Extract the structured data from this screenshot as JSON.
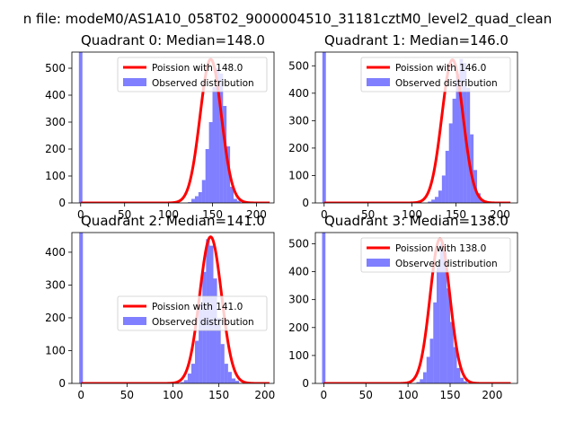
{
  "suptitle": "n file: modeM0/AS1A10_058T02_9000004510_31181cztM0_level2_quad_clean",
  "colors": {
    "hist": "#0000ff",
    "fit": "#ff0000"
  },
  "chart_data": [
    {
      "type": "bar",
      "title": "Quadrant 0: Median=148.0",
      "xlim": [
        -10,
        220
      ],
      "ylim": [
        0,
        560
      ],
      "xticks": [
        0,
        50,
        100,
        150,
        200
      ],
      "yticks": [
        0,
        100,
        200,
        300,
        400,
        500
      ],
      "legend": {
        "location": "upper right",
        "fit_label": "Poission with 148.0",
        "hist_label": "Observed distribution"
      },
      "zero_bin": {
        "center": 0,
        "count": 560
      },
      "poisson_mean": 148.0,
      "peak": 533,
      "fit_xrange": [
        0,
        215
      ],
      "histogram": {
        "bin_start": 98,
        "bin_width": 4,
        "counts": [
          0,
          0,
          0,
          0,
          0,
          0,
          3,
          15,
          25,
          40,
          85,
          200,
          300,
          430,
          500,
          480,
          360,
          210,
          60,
          15,
          8,
          0,
          0,
          0,
          0,
          0,
          0,
          0,
          0,
          0,
          0
        ]
      }
    },
    {
      "type": "bar",
      "title": "Quadrant 1: Median=146.0",
      "xlim": [
        -10,
        220
      ],
      "ylim": [
        0,
        550
      ],
      "xticks": [
        0,
        50,
        100,
        150,
        200
      ],
      "yticks": [
        0,
        100,
        200,
        300,
        400,
        500
      ],
      "legend": {
        "location": "upper right",
        "fit_label": "Poission with 146.0",
        "hist_label": "Observed distribution"
      },
      "zero_bin": {
        "center": 0,
        "count": 550
      },
      "poisson_mean": 146.0,
      "peak": 522,
      "fit_xrange": [
        0,
        212
      ],
      "histogram": {
        "bin_start": 98,
        "bin_width": 4,
        "counts": [
          0,
          0,
          0,
          0,
          0,
          5,
          12,
          22,
          45,
          100,
          190,
          290,
          380,
          470,
          525,
          510,
          420,
          250,
          120,
          35,
          10,
          5,
          0,
          0,
          0,
          0,
          0,
          0,
          0,
          0,
          0
        ]
      }
    },
    {
      "type": "bar",
      "title": "Quadrant 2: Median=141.0",
      "xlim": [
        -10,
        210
      ],
      "ylim": [
        0,
        460
      ],
      "xticks": [
        0,
        50,
        100,
        150,
        200
      ],
      "yticks": [
        0,
        100,
        200,
        300,
        400
      ],
      "legend": {
        "location": "center right",
        "fit_label": "Poission with 141.0",
        "hist_label": "Observed distribution"
      },
      "zero_bin": {
        "center": 0,
        "count": 460
      },
      "poisson_mean": 141.0,
      "peak": 447,
      "fit_xrange": [
        0,
        205
      ],
      "histogram": {
        "bin_start": 96,
        "bin_width": 4,
        "counts": [
          0,
          0,
          0,
          4,
          10,
          30,
          60,
          130,
          240,
          340,
          440,
          420,
          320,
          200,
          120,
          60,
          35,
          15,
          8,
          0,
          0,
          0,
          0,
          0,
          0,
          0,
          0,
          0,
          0
        ]
      }
    },
    {
      "type": "bar",
      "title": "Quadrant 3: Median=138.0",
      "xlim": [
        -10,
        230
      ],
      "ylim": [
        0,
        540
      ],
      "xticks": [
        0,
        50,
        100,
        150,
        200
      ],
      "yticks": [
        0,
        100,
        200,
        300,
        400,
        500
      ],
      "legend": {
        "location": "upper right",
        "fit_label": "Poission with 138.0",
        "hist_label": "Observed distribution"
      },
      "zero_bin": {
        "center": 0,
        "count": 540
      },
      "poisson_mean": 138.0,
      "peak": 518,
      "fit_xrange": [
        0,
        222
      ],
      "histogram": {
        "bin_start": 94,
        "bin_width": 4,
        "counts": [
          0,
          0,
          0,
          0,
          5,
          15,
          40,
          95,
          160,
          290,
          420,
          500,
          470,
          340,
          220,
          130,
          55,
          20,
          8,
          0,
          0,
          0,
          0,
          0,
          0,
          0,
          0,
          0,
          0,
          0
        ]
      }
    }
  ]
}
